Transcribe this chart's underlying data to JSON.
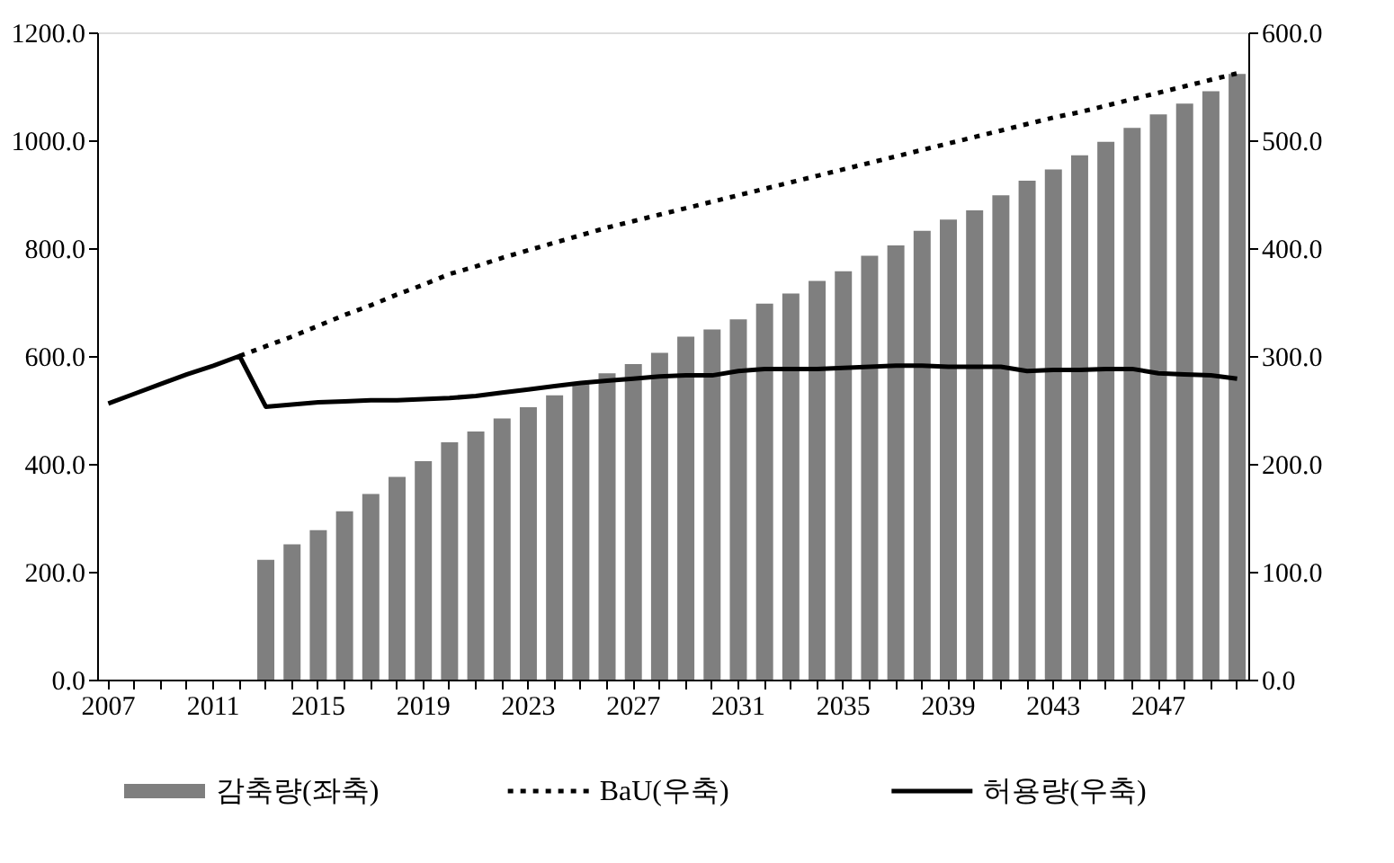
{
  "chart_data": {
    "type": "bar",
    "categories": [
      "2007",
      null,
      null,
      null,
      "2011",
      null,
      null,
      null,
      "2015",
      null,
      null,
      null,
      "2019",
      null,
      null,
      null,
      "2023",
      null,
      null,
      null,
      "2027",
      null,
      null,
      null,
      "2031",
      null,
      null,
      null,
      "2035",
      null,
      null,
      null,
      "2039",
      null,
      null,
      null,
      "2043",
      null,
      null,
      null,
      "2047",
      null,
      null,
      null
    ],
    "series": [
      {
        "name": "감축량(좌축)",
        "color": "#7f7f7f",
        "values": [
          null,
          null,
          null,
          null,
          null,
          null,
          222,
          251,
          277,
          312,
          344,
          376,
          405,
          440,
          460,
          484,
          505,
          527,
          549,
          568,
          585,
          606,
          636,
          649,
          668,
          697,
          716,
          739,
          757,
          786,
          805,
          832,
          853,
          870,
          898,
          925,
          946,
          972,
          997,
          1023,
          1048,
          1068,
          1091,
          1123
        ]
      },
      {
        "name": "BaU(우축)",
        "type": "line",
        "axis": "y2",
        "line_style": "dotted",
        "color": "#000000",
        "values": [
          null,
          null,
          null,
          null,
          null,
          300,
          309,
          318,
          328,
          338,
          347,
          357,
          366,
          376,
          383,
          391,
          398,
          405,
          412,
          419,
          425,
          431,
          437,
          443,
          449,
          455,
          461,
          467,
          473,
          479,
          485,
          491,
          497,
          503,
          509,
          515,
          521,
          526,
          532,
          538,
          544,
          550,
          556,
          562
        ]
      },
      {
        "name": "허용량(우축)",
        "type": "line",
        "axis": "y2",
        "line_style": "solid",
        "color": "#000000",
        "values": [
          256,
          265,
          274,
          283,
          291,
          300,
          253,
          255,
          257,
          258,
          259,
          259,
          260,
          261,
          263,
          266,
          269,
          272,
          275,
          277,
          279,
          281,
          282,
          282,
          286,
          288,
          288,
          288,
          289,
          290,
          291,
          291,
          290,
          290,
          290,
          286,
          287,
          287,
          288,
          288,
          284,
          283,
          282,
          279
        ]
      }
    ],
    "ylim": [
      0,
      1200
    ],
    "yticks": [
      {
        "value": 0,
        "label": "0.0"
      },
      {
        "value": 200,
        "label": "200.0"
      },
      {
        "value": 400,
        "label": "400.0"
      },
      {
        "value": 600,
        "label": "600.0"
      },
      {
        "value": 800,
        "label": "800.0"
      },
      {
        "value": 1000,
        "label": "1000.0"
      },
      {
        "value": 1200,
        "label": "1200.0"
      }
    ],
    "y2lim": [
      0,
      600
    ],
    "y2ticks": [
      {
        "value": 0,
        "label": "0.0"
      },
      {
        "value": 100,
        "label": "100.0"
      },
      {
        "value": 200,
        "label": "200.0"
      },
      {
        "value": 300,
        "label": "300.0"
      },
      {
        "value": 400,
        "label": "400.0"
      },
      {
        "value": 500,
        "label": "500.0"
      },
      {
        "value": 600,
        "label": "600.0"
      }
    ],
    "grid": false,
    "legend": "bottom"
  }
}
